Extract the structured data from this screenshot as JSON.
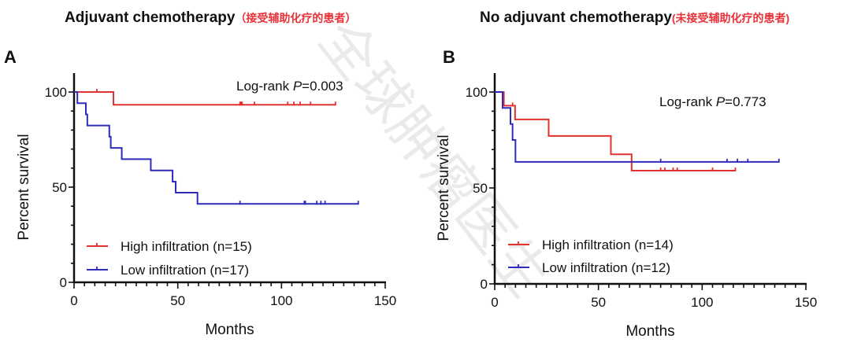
{
  "watermark": "全球肿瘤医生",
  "colors": {
    "high": "#e0322f",
    "low": "#2e2cb8",
    "axis": "#111111"
  },
  "chart_data": [
    {
      "type": "line",
      "subtype": "kaplan-meier",
      "panel_letter": "A",
      "title": "Adjuvant chemotherapy",
      "title_cn": "（接受辅助化疗的患者）",
      "xlabel": "Months",
      "ylabel": "Percent survival",
      "xlim": [
        0,
        150
      ],
      "ylim": [
        0,
        100
      ],
      "xticks": [
        0,
        50,
        100,
        150
      ],
      "yticks": [
        0,
        50,
        100
      ],
      "annotation": {
        "prefix": "Log-rank ",
        "p": "P",
        "value": "=0.003"
      },
      "legend_position": "bottom-left",
      "series": [
        {
          "name": "High infiltration (n=15)",
          "color_key": "high",
          "steps": [
            [
              0,
              100
            ],
            [
              19,
              93.3
            ]
          ],
          "end": 126,
          "censored": [
            11,
            80,
            80.5,
            81,
            87,
            103,
            106,
            109,
            114,
            126
          ]
        },
        {
          "name": "Low infiltration (n=17)",
          "color_key": "low",
          "steps": [
            [
              0,
              100
            ],
            [
              1.6,
              94.1
            ],
            [
              5.7,
              88.2
            ],
            [
              6.4,
              82.4
            ],
            [
              17,
              76.5
            ],
            [
              17.7,
              70.6
            ],
            [
              23,
              64.7
            ],
            [
              37,
              58.8
            ],
            [
              47.5,
              52.9
            ],
            [
              49,
              47.1
            ],
            [
              59.5,
              41.2
            ]
          ],
          "end": 137,
          "censored": [
            80,
            111,
            111.5,
            117,
            119,
            121,
            137
          ]
        }
      ]
    },
    {
      "type": "line",
      "subtype": "kaplan-meier",
      "panel_letter": "B",
      "title": "No adjuvant chemotherapy",
      "title_cn": "(未接受辅助化疗的患者)",
      "xlabel": "Months",
      "ylabel": "Percent survival",
      "xlim": [
        0,
        150
      ],
      "ylim": [
        0,
        100
      ],
      "xticks": [
        0,
        50,
        100,
        150
      ],
      "yticks": [
        0,
        50,
        100
      ],
      "annotation": {
        "prefix": "Log-rank ",
        "p": "P",
        "value": "=0.773"
      },
      "legend_position": "bottom-left",
      "series": [
        {
          "name": "High infiltration (n=14)",
          "color_key": "high",
          "steps": [
            [
              0,
              100
            ],
            [
              4.4,
              92.9
            ],
            [
              9.8,
              85.7
            ],
            [
              26,
              77.1
            ],
            [
              56,
              67.5
            ],
            [
              66,
              59.0
            ]
          ],
          "end": 116,
          "censored": [
            8.6,
            80,
            82,
            86,
            88,
            105,
            116
          ]
        },
        {
          "name": "Low infiltration (n=12)",
          "color_key": "low",
          "steps": [
            [
              0,
              100
            ],
            [
              3.8,
              91.7
            ],
            [
              7.6,
              83.3
            ],
            [
              8.6,
              75.0
            ],
            [
              10,
              63.6
            ]
          ],
          "end": 137,
          "censored": [
            80,
            112,
            117,
            122,
            137
          ]
        }
      ]
    }
  ]
}
